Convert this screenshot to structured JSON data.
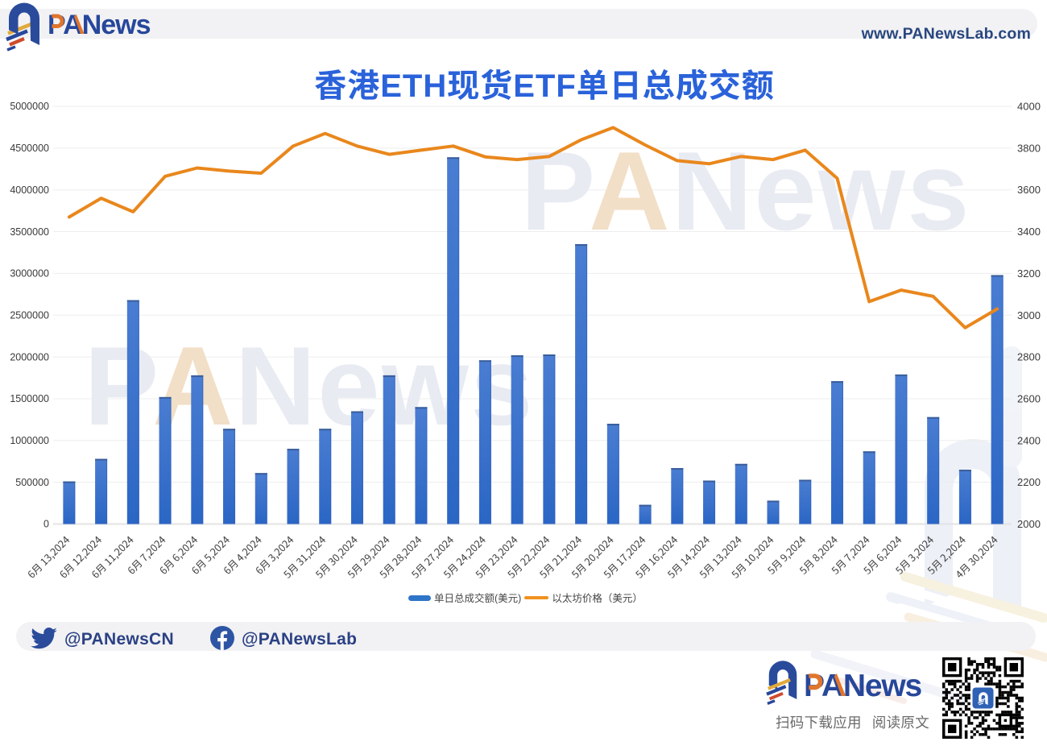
{
  "header": {
    "brand": "PANews",
    "website": "www.PANewsLab.com"
  },
  "title": "香港ETH现货ETF单日总成交额",
  "chart_data": {
    "type": "combo",
    "title": "香港ETH现货ETF单日总成交额",
    "categories": [
      "6月 13,2024",
      "6月 12,2024",
      "6月 11,2024",
      "6月 7,2024",
      "6月 6,2024",
      "6月 5,2024",
      "6月 4,2024",
      "6月 3,2024",
      "5月 31,2024",
      "5月 30,2024",
      "5月 29,2024",
      "5月 28,2024",
      "5月 27,2024",
      "5月 24,2024",
      "5月 23,2024",
      "5月 22,2024",
      "5月 21,2024",
      "5月 20,2024",
      "5月 17,2024",
      "5月 16,2024",
      "5月 14,2024",
      "5月 13,2024",
      "5月 10,2024",
      "5月 9,2024",
      "5月 8,2024",
      "5月 7,2024",
      "5月 6,2024",
      "5月 3,2024",
      "5月 2,2024",
      "4月 30,2024"
    ],
    "series": [
      {
        "name": "单日总成交额(美元)",
        "type": "bar",
        "yaxis": "left",
        "values": [
          510000,
          780000,
          2680000,
          1520000,
          1780000,
          1140000,
          610000,
          900000,
          1140000,
          1350000,
          1780000,
          1400000,
          4390000,
          1960000,
          2020000,
          2030000,
          3350000,
          1200000,
          230000,
          670000,
          520000,
          720000,
          280000,
          530000,
          1710000,
          870000,
          1790000,
          1280000,
          650000,
          2980000
        ]
      },
      {
        "name": "以太坊价格（美元）",
        "type": "line",
        "yaxis": "right",
        "values": [
          3470,
          3560,
          3495,
          3665,
          3705,
          3690,
          3680,
          3810,
          3870,
          3810,
          3770,
          3790,
          3810,
          3758,
          3745,
          3760,
          3840,
          3898,
          3815,
          3740,
          3725,
          3760,
          3745,
          3790,
          3655,
          3065,
          3120,
          3090,
          2940,
          3030
        ]
      }
    ],
    "left_axis": {
      "min": 0,
      "max": 5000000,
      "tick_step": 500000
    },
    "right_axis": {
      "min": 2000,
      "max": 4000,
      "tick_step": 200
    },
    "grid": true,
    "legend_position": "bottom",
    "x_label_rotation": -45
  },
  "legend": {
    "bar_label": "单日总成交额(美元)",
    "line_label": "以太坊价格（美元）"
  },
  "watermark_text": "PANews",
  "footer": {
    "twitter_handle": "@PANewsCN",
    "facebook_handle": "@PANewsLab",
    "brand": "PANews",
    "scan_caption": "扫码下载应用",
    "read_caption": "阅读原文"
  },
  "colors": {
    "title": "#2a62da",
    "brand_navy": "#2a4b9b",
    "brand_orange": "#e07a2e",
    "bar_top": "#4a7dd2",
    "bar_bottom": "#2b66c5",
    "bar_cap": "#3a5e9a",
    "line": "#e9871c",
    "legend_bar": "#2e74c8",
    "legend_line": "#f0921e",
    "grid": "#ededed",
    "axis_line": "#e3e3e5",
    "tick_text": "#3a3a3a",
    "x_label_text": "#3f3f3f",
    "band": "#f2f2f4",
    "watermark": "#e9ebf3",
    "watermark_accent": "#f2dfc7"
  }
}
